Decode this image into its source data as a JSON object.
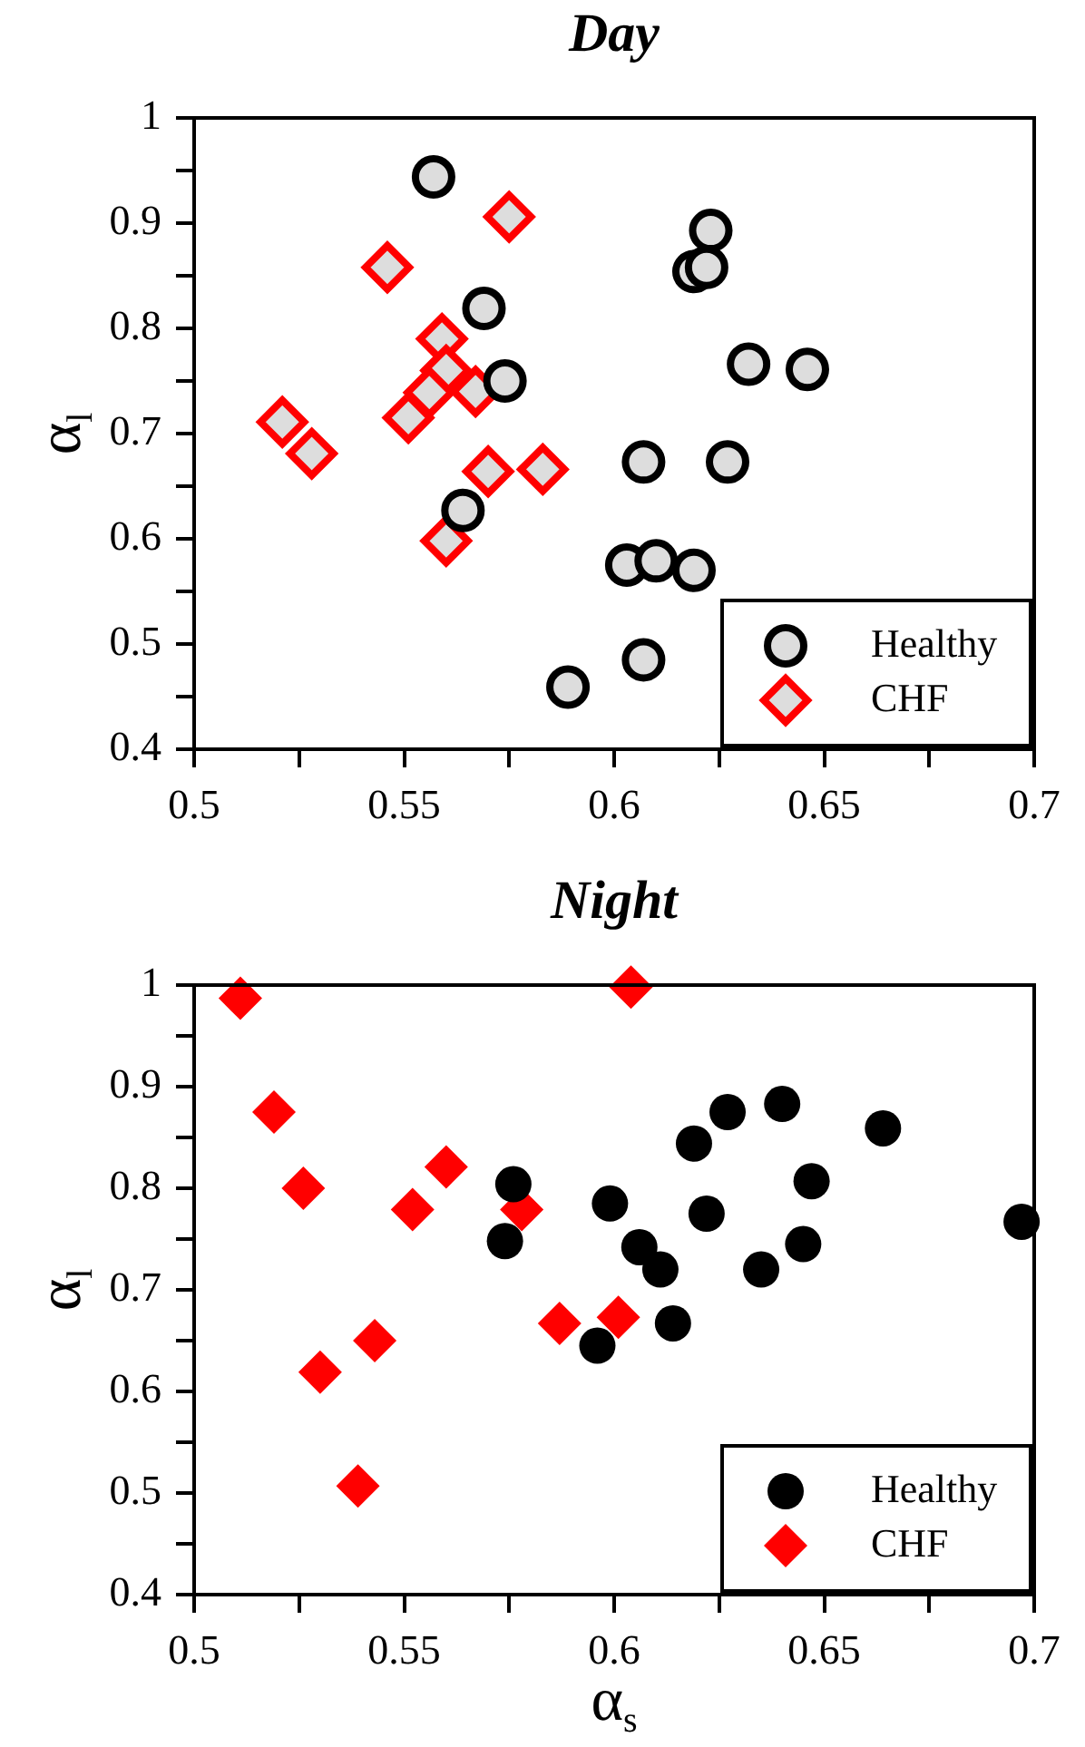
{
  "chart_data": [
    {
      "type": "scatter",
      "title": "Day",
      "ylabel": "α$_{l}$",
      "xlim": [
        0.5,
        0.7
      ],
      "ylim": [
        0.4,
        1
      ],
      "xticks": [
        0.5,
        {
          "value": 0.525,
          "label": null
        },
        0.55,
        {
          "value": 0.575,
          "label": null
        },
        0.6,
        {
          "value": 0.625,
          "label": null
        },
        0.65,
        {
          "value": 0.675,
          "label": null
        },
        0.7
      ],
      "yticks": [
        0.4,
        {
          "value": 0.45,
          "label": null
        },
        0.5,
        {
          "value": 0.55,
          "label": null
        },
        0.6,
        {
          "value": 0.65,
          "label": null
        },
        0.7,
        {
          "value": 0.75,
          "label": null
        },
        0.8,
        {
          "value": 0.85,
          "label": null
        },
        0.9,
        {
          "value": 0.95,
          "label": null
        },
        1
      ],
      "grid": false,
      "legend": "bottom right",
      "series": [
        {
          "name": "Healthy",
          "color": "#000000",
          "marker": "circle",
          "x": [
            0.557,
            0.569,
            0.574,
            0.623,
            0.619,
            0.622,
            0.632,
            0.646,
            0.607,
            0.627,
            0.564,
            0.603,
            0.61,
            0.619,
            0.607,
            0.589
          ],
          "values": [
            0.944,
            0.819,
            0.75,
            0.893,
            0.854,
            0.858,
            0.766,
            0.761,
            0.673,
            0.673,
            0.627,
            0.575,
            0.579,
            0.57,
            0.485,
            0.459
          ]
        },
        {
          "name": "CHF",
          "color": "#ff0000",
          "marker": "diamond",
          "x": [
            0.575,
            0.546,
            0.559,
            0.56,
            0.556,
            0.567,
            0.551,
            0.521,
            0.528,
            0.57,
            0.583,
            0.56
          ],
          "values": [
            0.906,
            0.858,
            0.79,
            0.76,
            0.739,
            0.74,
            0.715,
            0.711,
            0.681,
            0.664,
            0.666,
            0.598
          ]
        }
      ]
    },
    {
      "type": "scatter",
      "title": "Night",
      "xlabel": "α$_{s}$",
      "ylabel": "α$_{l}$",
      "xlim": [
        0.5,
        0.7
      ],
      "ylim": [
        0.4,
        1
      ],
      "xticks": [
        0.5,
        {
          "value": 0.525,
          "label": null
        },
        0.55,
        {
          "value": 0.575,
          "label": null
        },
        0.6,
        {
          "value": 0.625,
          "label": null
        },
        0.65,
        {
          "value": 0.675,
          "label": null
        },
        0.7
      ],
      "yticks": [
        0.4,
        {
          "value": 0.45,
          "label": null
        },
        0.5,
        {
          "value": 0.55,
          "label": null
        },
        0.6,
        {
          "value": 0.65,
          "label": null
        },
        0.7,
        {
          "value": 0.75,
          "label": null
        },
        0.8,
        {
          "value": 0.85,
          "label": null
        },
        0.9,
        {
          "value": 0.95,
          "label": null
        },
        1
      ],
      "grid": false,
      "legend": "bottom right",
      "series": [
        {
          "name": "Healthy",
          "color": "#000000",
          "marker": "circle",
          "x": [
            0.576,
            0.574,
            0.599,
            0.606,
            0.611,
            0.614,
            0.596,
            0.619,
            0.627,
            0.64,
            0.664,
            0.622,
            0.647,
            0.645,
            0.635,
            0.697
          ],
          "values": [
            0.804,
            0.748,
            0.785,
            0.742,
            0.72,
            0.667,
            0.645,
            0.844,
            0.875,
            0.883,
            0.859,
            0.775,
            0.807,
            0.745,
            0.72,
            0.767
          ]
        },
        {
          "name": "CHF",
          "color": "#ff0000",
          "marker": "diamond",
          "x": [
            0.511,
            0.604,
            0.519,
            0.526,
            0.56,
            0.552,
            0.578,
            0.53,
            0.543,
            0.539,
            0.587,
            0.601
          ],
          "values": [
            0.987,
            0.998,
            0.875,
            0.8,
            0.821,
            0.779,
            0.779,
            0.619,
            0.65,
            0.507,
            0.667,
            0.673
          ]
        }
      ]
    }
  ]
}
